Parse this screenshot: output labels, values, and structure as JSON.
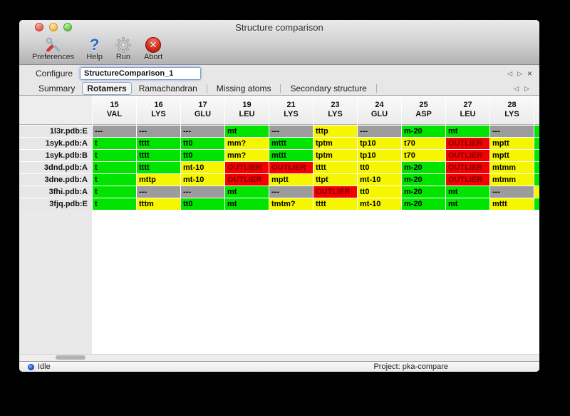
{
  "window": {
    "title": "Structure comparison"
  },
  "toolbar": {
    "items": [
      {
        "label": "Preferences"
      },
      {
        "label": "Help"
      },
      {
        "label": "Run"
      },
      {
        "label": "Abort"
      }
    ]
  },
  "configure": {
    "label": "Configure",
    "value": "StructureComparison_1",
    "prev_glyph": "◁",
    "next_glyph": "▷",
    "close_glyph": "×"
  },
  "tabs": {
    "items": [
      "Summary",
      "Rotamers",
      "Ramachandran",
      "Missing atoms",
      "Secondary structure"
    ],
    "selected": "Rotamers",
    "prev_glyph": "◁",
    "next_glyph": "▷"
  },
  "table": {
    "columns": [
      {
        "num": "15",
        "res": "VAL"
      },
      {
        "num": "16",
        "res": "LYS"
      },
      {
        "num": "17",
        "res": "GLU"
      },
      {
        "num": "19",
        "res": "LEU"
      },
      {
        "num": "21",
        "res": "LYS"
      },
      {
        "num": "23",
        "res": "LYS"
      },
      {
        "num": "24",
        "res": "GLU"
      },
      {
        "num": "25",
        "res": "ASP"
      },
      {
        "num": "27",
        "res": "LEU"
      },
      {
        "num": "28",
        "res": "LYS"
      },
      {
        "num": "",
        "res": ""
      }
    ],
    "rows": [
      {
        "label": "1l3r.pdb:E",
        "cells": [
          {
            "text": "---",
            "status": "none"
          },
          {
            "text": "---",
            "status": "none"
          },
          {
            "text": "---",
            "status": "none"
          },
          {
            "text": "mt",
            "status": "ok"
          },
          {
            "text": "---",
            "status": "none"
          },
          {
            "text": "tttp",
            "status": "warn"
          },
          {
            "text": "---",
            "status": "none"
          },
          {
            "text": "m-20",
            "status": "ok"
          },
          {
            "text": "mt",
            "status": "ok"
          },
          {
            "text": "---",
            "status": "none"
          },
          {
            "text": "",
            "status": "ok"
          }
        ]
      },
      {
        "label": "1syk.pdb:A",
        "cells": [
          {
            "text": "t",
            "status": "ok"
          },
          {
            "text": "tttt",
            "status": "ok"
          },
          {
            "text": "tt0",
            "status": "ok"
          },
          {
            "text": "mm?",
            "status": "warn"
          },
          {
            "text": "mttt",
            "status": "ok"
          },
          {
            "text": "tptm",
            "status": "warn"
          },
          {
            "text": "tp10",
            "status": "warn"
          },
          {
            "text": "t70",
            "status": "warn"
          },
          {
            "text": "OUTLIER",
            "status": "outlier"
          },
          {
            "text": "mptt",
            "status": "warn"
          },
          {
            "text": "",
            "status": "ok"
          }
        ]
      },
      {
        "label": "1syk.pdb:B",
        "cells": [
          {
            "text": "t",
            "status": "ok"
          },
          {
            "text": "tttt",
            "status": "ok"
          },
          {
            "text": "tt0",
            "status": "ok"
          },
          {
            "text": "mm?",
            "status": "warn"
          },
          {
            "text": "mttt",
            "status": "ok"
          },
          {
            "text": "tptm",
            "status": "warn"
          },
          {
            "text": "tp10",
            "status": "warn"
          },
          {
            "text": "t70",
            "status": "warn"
          },
          {
            "text": "OUTLIER",
            "status": "outlier"
          },
          {
            "text": "mptt",
            "status": "warn"
          },
          {
            "text": "",
            "status": "ok"
          }
        ]
      },
      {
        "label": "3dnd.pdb:A",
        "cells": [
          {
            "text": "t",
            "status": "ok"
          },
          {
            "text": "tttt",
            "status": "ok"
          },
          {
            "text": "mt-10",
            "status": "warn"
          },
          {
            "text": "OUTLIER",
            "status": "outlier"
          },
          {
            "text": "OUTLIER",
            "status": "outlier"
          },
          {
            "text": "tttt",
            "status": "warn"
          },
          {
            "text": "tt0",
            "status": "warn"
          },
          {
            "text": "m-20",
            "status": "ok"
          },
          {
            "text": "OUTLIER",
            "status": "outlier"
          },
          {
            "text": "mtmm",
            "status": "warn"
          },
          {
            "text": "",
            "status": "ok"
          }
        ]
      },
      {
        "label": "3dne.pdb:A",
        "cells": [
          {
            "text": "t",
            "status": "ok"
          },
          {
            "text": "mttp",
            "status": "warn"
          },
          {
            "text": "mt-10",
            "status": "warn"
          },
          {
            "text": "OUTLIER",
            "status": "outlier"
          },
          {
            "text": "mptt",
            "status": "warn"
          },
          {
            "text": "ttpt",
            "status": "warn"
          },
          {
            "text": "mt-10",
            "status": "warn"
          },
          {
            "text": "m-20",
            "status": "ok"
          },
          {
            "text": "OUTLIER",
            "status": "outlier"
          },
          {
            "text": "mtmm",
            "status": "warn"
          },
          {
            "text": "",
            "status": "ok"
          }
        ]
      },
      {
        "label": "3fhi.pdb:A",
        "cells": [
          {
            "text": "t",
            "status": "ok"
          },
          {
            "text": "---",
            "status": "none"
          },
          {
            "text": "---",
            "status": "none"
          },
          {
            "text": "mt",
            "status": "ok"
          },
          {
            "text": "---",
            "status": "none"
          },
          {
            "text": "OUTLIER",
            "status": "outlier"
          },
          {
            "text": "tt0",
            "status": "warn"
          },
          {
            "text": "m-20",
            "status": "ok"
          },
          {
            "text": "mt",
            "status": "ok"
          },
          {
            "text": "---",
            "status": "none"
          },
          {
            "text": "",
            "status": "warn"
          }
        ]
      },
      {
        "label": "3fjq.pdb:E",
        "cells": [
          {
            "text": "t",
            "status": "ok"
          },
          {
            "text": "tttm",
            "status": "warn"
          },
          {
            "text": "tt0",
            "status": "ok"
          },
          {
            "text": "mt",
            "status": "ok"
          },
          {
            "text": "tmtm?",
            "status": "warn"
          },
          {
            "text": "tttt",
            "status": "warn"
          },
          {
            "text": "mt-10",
            "status": "warn"
          },
          {
            "text": "m-20",
            "status": "ok"
          },
          {
            "text": "mt",
            "status": "ok"
          },
          {
            "text": "mttt",
            "status": "warn"
          },
          {
            "text": "",
            "status": "ok"
          }
        ]
      }
    ]
  },
  "statusbar": {
    "status": "Idle",
    "project": "Project: pka-compare"
  },
  "colors": {
    "ok": "#00e400",
    "warn": "#f6f600",
    "outlier": "#f40000",
    "none": "#9c9c9c",
    "outlier_text": "#7c0000"
  }
}
